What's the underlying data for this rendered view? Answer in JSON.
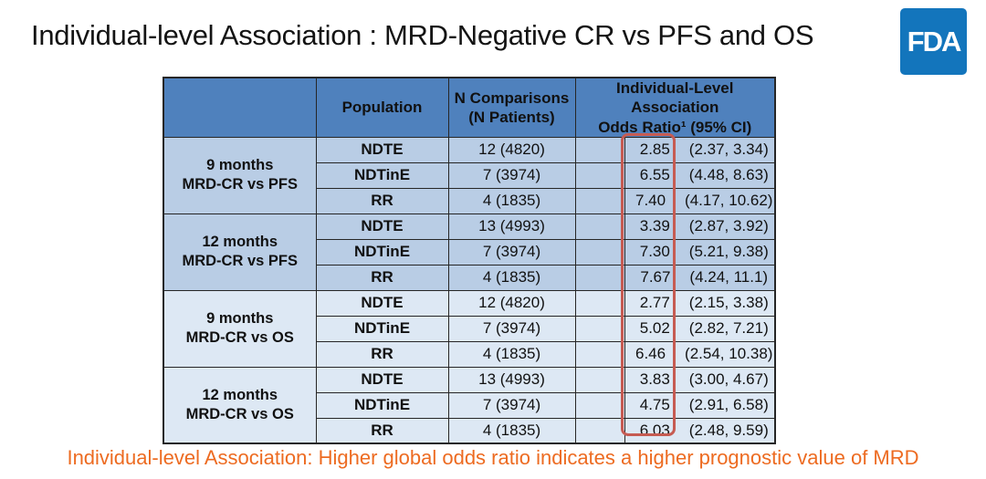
{
  "title": "Individual-level Association : MRD-Negative CR vs PFS and OS",
  "logo": {
    "label": "FDA"
  },
  "table": {
    "headers": {
      "group": "",
      "population": "Population",
      "n_comparisons": "N Comparisons\n(N Patients)",
      "odds_ratio": "Individual-Level Association\nOdds Ratio¹ (95% CI)"
    },
    "groups": [
      {
        "label": "9 months\nMRD-CR vs PFS",
        "shade": "pfs",
        "rows": [
          {
            "population": "NDTE",
            "n": "12 (4820)",
            "or": "2.85",
            "ci": "(2.37, 3.34)"
          },
          {
            "population": "NDTinE",
            "n": "7 (3974)",
            "or": "6.55",
            "ci": "(4.48, 8.63)"
          },
          {
            "population": "RR",
            "n": "4 (1835)",
            "or": "7.40",
            "ci": "(4.17, 10.62)"
          }
        ]
      },
      {
        "label": "12 months\nMRD-CR vs PFS",
        "shade": "pfs",
        "rows": [
          {
            "population": "NDTE",
            "n": "13 (4993)",
            "or": "3.39",
            "ci": "(2.87, 3.92)"
          },
          {
            "population": "NDTinE",
            "n": "7 (3974)",
            "or": "7.30",
            "ci": "(5.21, 9.38)"
          },
          {
            "population": "RR",
            "n": "4 (1835)",
            "or": "7.67",
            "ci": "(4.24, 11.1)"
          }
        ]
      },
      {
        "label": "9 months\nMRD-CR vs OS",
        "shade": "os",
        "rows": [
          {
            "population": "NDTE",
            "n": "12 (4820)",
            "or": "2.77",
            "ci": "(2.15, 3.38)"
          },
          {
            "population": "NDTinE",
            "n": "7 (3974)",
            "or": "5.02",
            "ci": "(2.82, 7.21)"
          },
          {
            "population": "RR",
            "n": "4 (1835)",
            "or": "6.46",
            "ci": "(2.54, 10.38)"
          }
        ]
      },
      {
        "label": "12 months\nMRD-CR vs OS",
        "shade": "os",
        "rows": [
          {
            "population": "NDTE",
            "n": "13 (4993)",
            "or": "3.83",
            "ci": "(3.00, 4.67)"
          },
          {
            "population": "NDTinE",
            "n": "7 (3974)",
            "or": "4.75",
            "ci": "(2.91, 6.58)"
          },
          {
            "population": "RR",
            "n": "4 (1835)",
            "or": "6.03",
            "ci": "(2.48, 9.59)"
          }
        ]
      }
    ]
  },
  "footer_note": "Individual-level Association: Higher global odds ratio indicates a higher prognostic value of MRD",
  "colors": {
    "header_bg": "#4f81bd",
    "header_text": "#ffffff",
    "row_pfs": "#b9cde5",
    "row_os": "#dde8f4",
    "border": "#262626",
    "highlight_box": "#c65b52",
    "footer_text": "#ed6b21",
    "logo_bg": "#1375bc",
    "logo_text": "#ffffff",
    "body_text": "#111111",
    "title_text": "#141414"
  }
}
